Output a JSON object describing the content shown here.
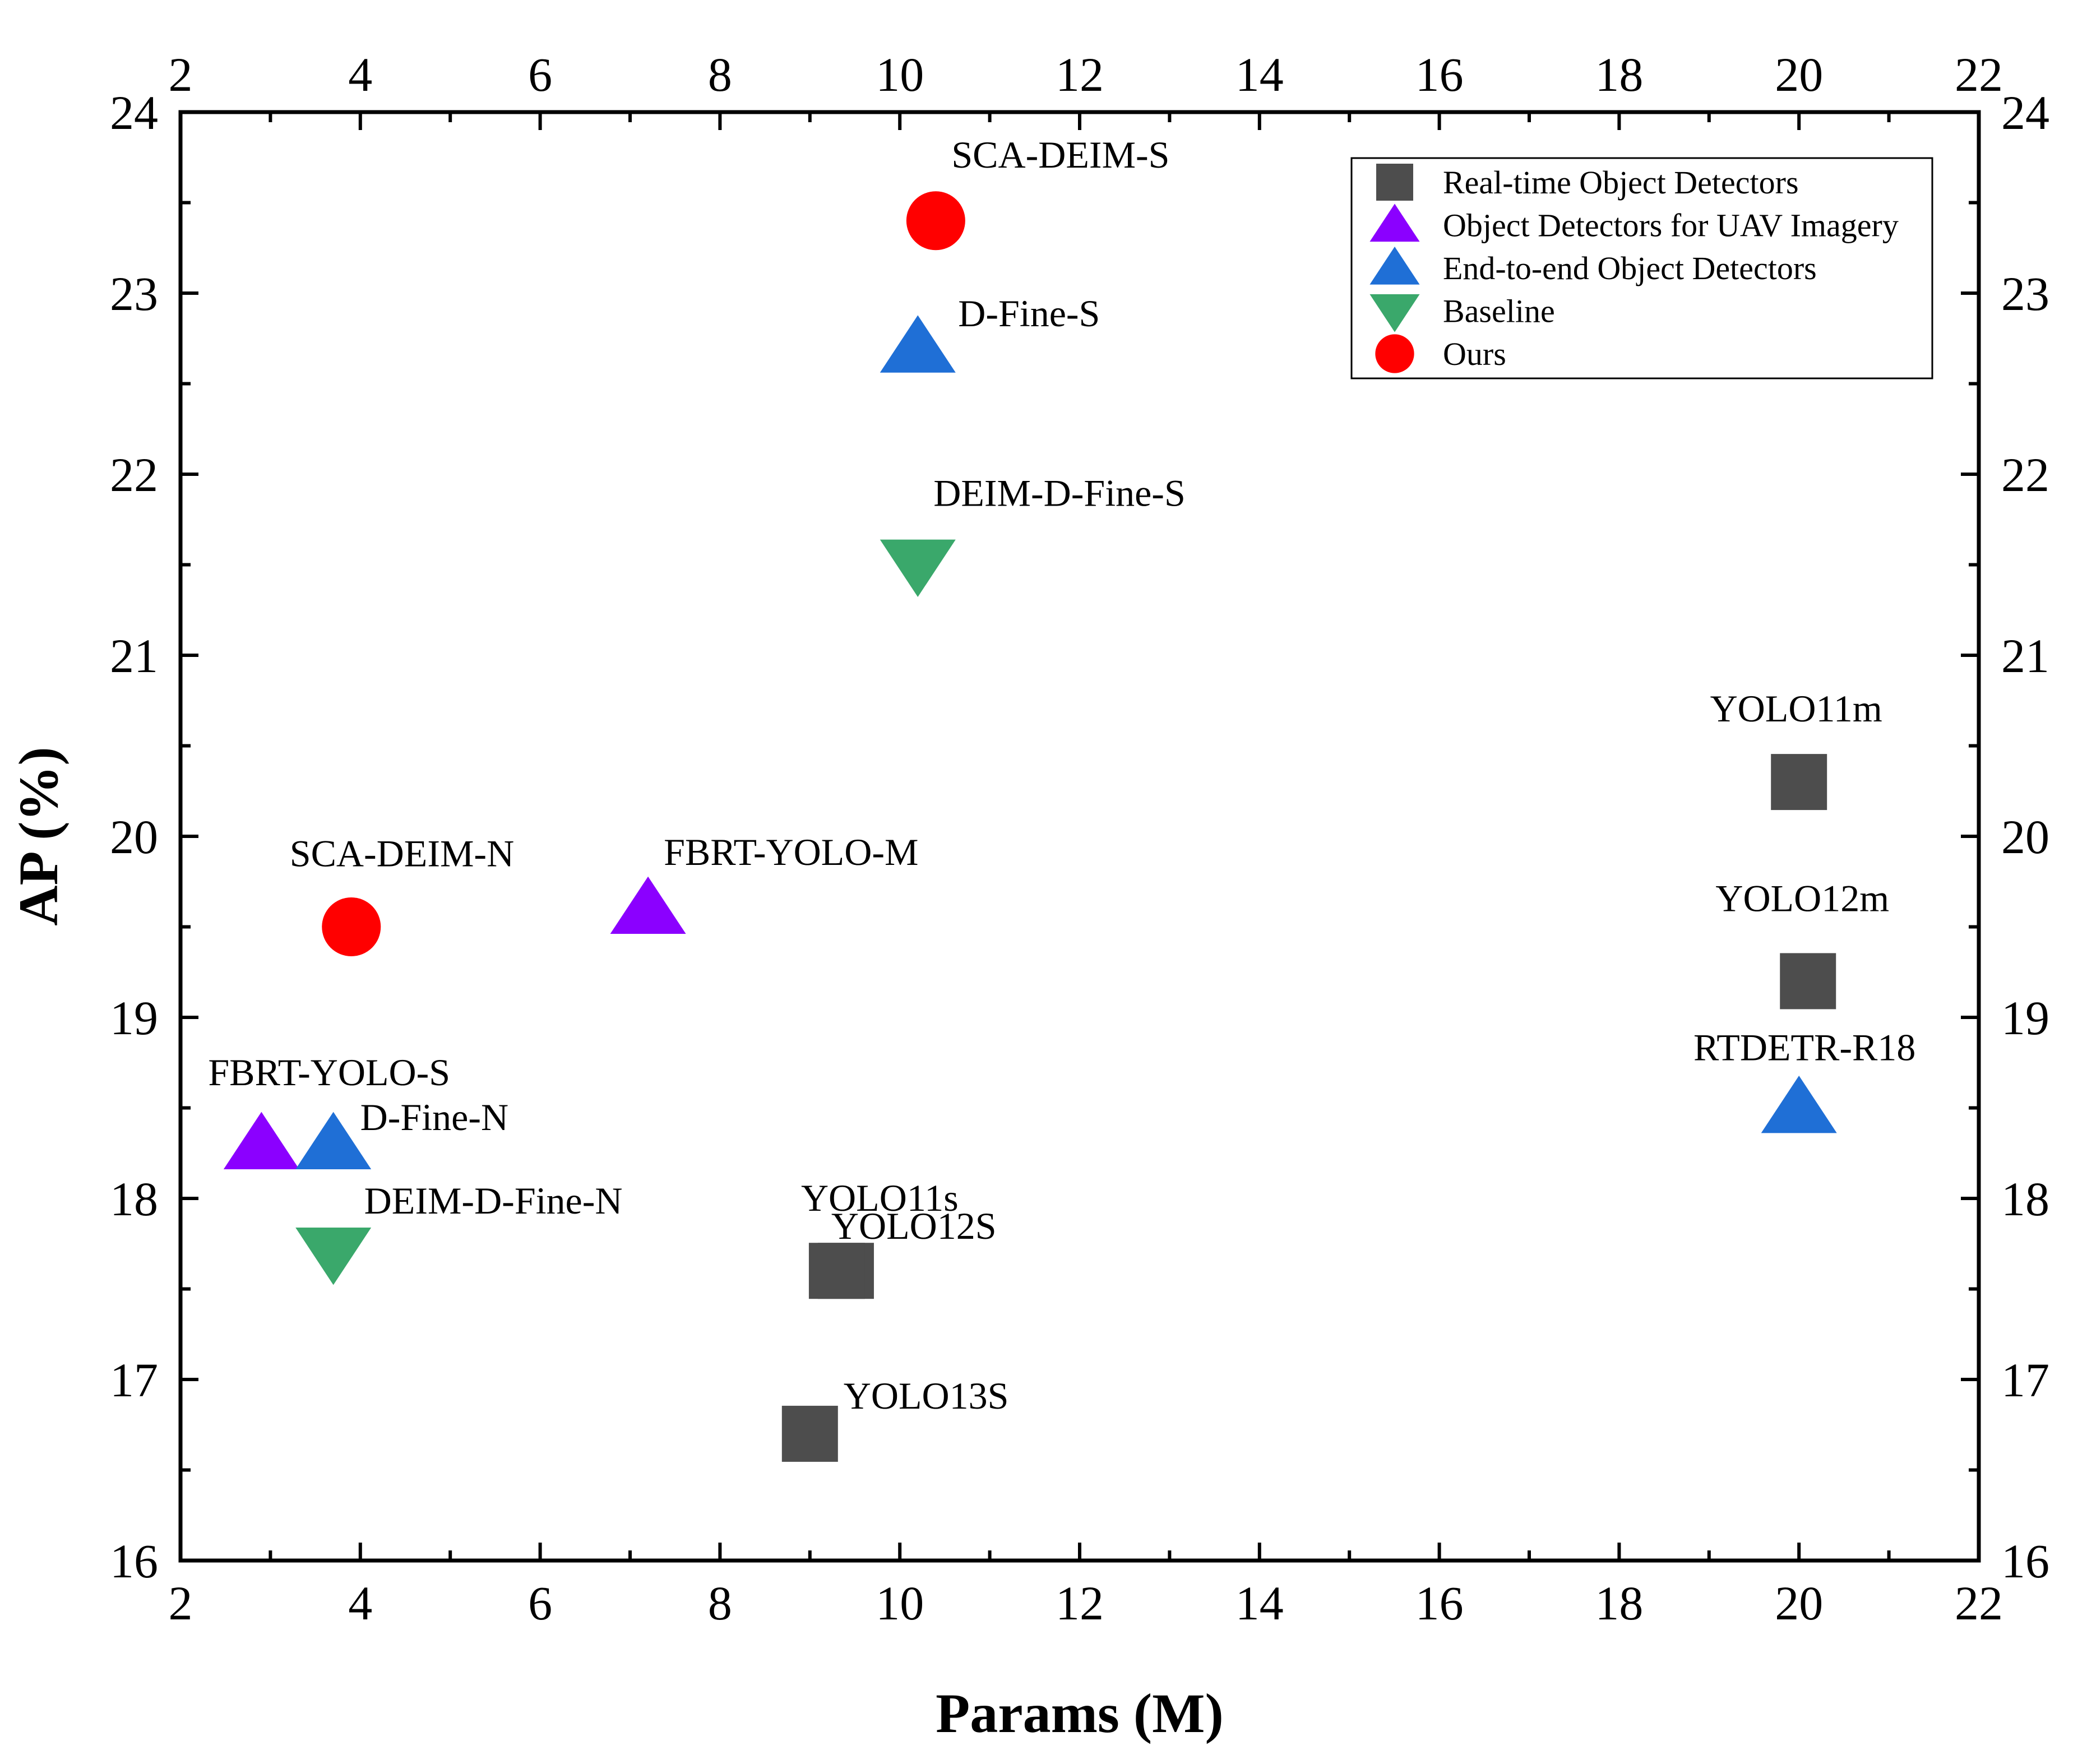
{
  "chart_data": {
    "type": "scatter",
    "xlabel": "Params (M)",
    "ylabel": "AP (%)",
    "xlim": [
      2,
      22
    ],
    "ylim": [
      16,
      24
    ],
    "xticks": [
      "2",
      "4",
      "6",
      "8",
      "10",
      "12",
      "14",
      "16",
      "18",
      "20",
      "22"
    ],
    "yticks": [
      "16",
      "17",
      "18",
      "19",
      "20",
      "21",
      "22",
      "23",
      "24"
    ],
    "legend_position": "top-right",
    "series": [
      {
        "name": "Real-time Object Detectors",
        "marker": "square",
        "color": "#4d4d4d",
        "points": [
          {
            "label": "YOLO11m",
            "x": 20.0,
            "y": 20.3
          },
          {
            "label": "YOLO12m",
            "x": 20.1,
            "y": 19.2
          },
          {
            "label": "YOLO11s",
            "x": 9.4,
            "y": 17.6
          },
          {
            "label": "YOLO12S",
            "x": 9.3,
            "y": 17.6
          },
          {
            "label": "YOLO13S",
            "x": 9.0,
            "y": 16.7
          }
        ]
      },
      {
        "name": "Object Detectors for UAV Imagery",
        "marker": "triangle-up",
        "color": "#8b00ff",
        "points": [
          {
            "label": "FBRT-YOLO-M",
            "x": 7.2,
            "y": 19.6
          },
          {
            "label": "FBRT-YOLO-S",
            "x": 2.9,
            "y": 18.3
          }
        ]
      },
      {
        "name": "End-to-end Object Detectors",
        "marker": "triangle-up",
        "color": "#1f6fd6",
        "points": [
          {
            "label": "D-Fine-S",
            "x": 10.2,
            "y": 22.7
          },
          {
            "label": "RTDETR-R18",
            "x": 20.0,
            "y": 18.5
          },
          {
            "label": "D-Fine-N",
            "x": 3.7,
            "y": 18.3
          }
        ]
      },
      {
        "name": "Baseline",
        "marker": "triangle-down",
        "color": "#3aa86b",
        "points": [
          {
            "label": "DEIM-D-Fine-S",
            "x": 10.2,
            "y": 21.5
          },
          {
            "label": "DEIM-D-Fine-N",
            "x": 3.7,
            "y": 17.7
          }
        ]
      },
      {
        "name": "Ours",
        "marker": "circle",
        "color": "#ff0000",
        "points": [
          {
            "label": "SCA-DEIM-S",
            "x": 10.4,
            "y": 23.4
          },
          {
            "label": "SCA-DEIM-N",
            "x": 3.9,
            "y": 19.5
          }
        ]
      }
    ]
  }
}
